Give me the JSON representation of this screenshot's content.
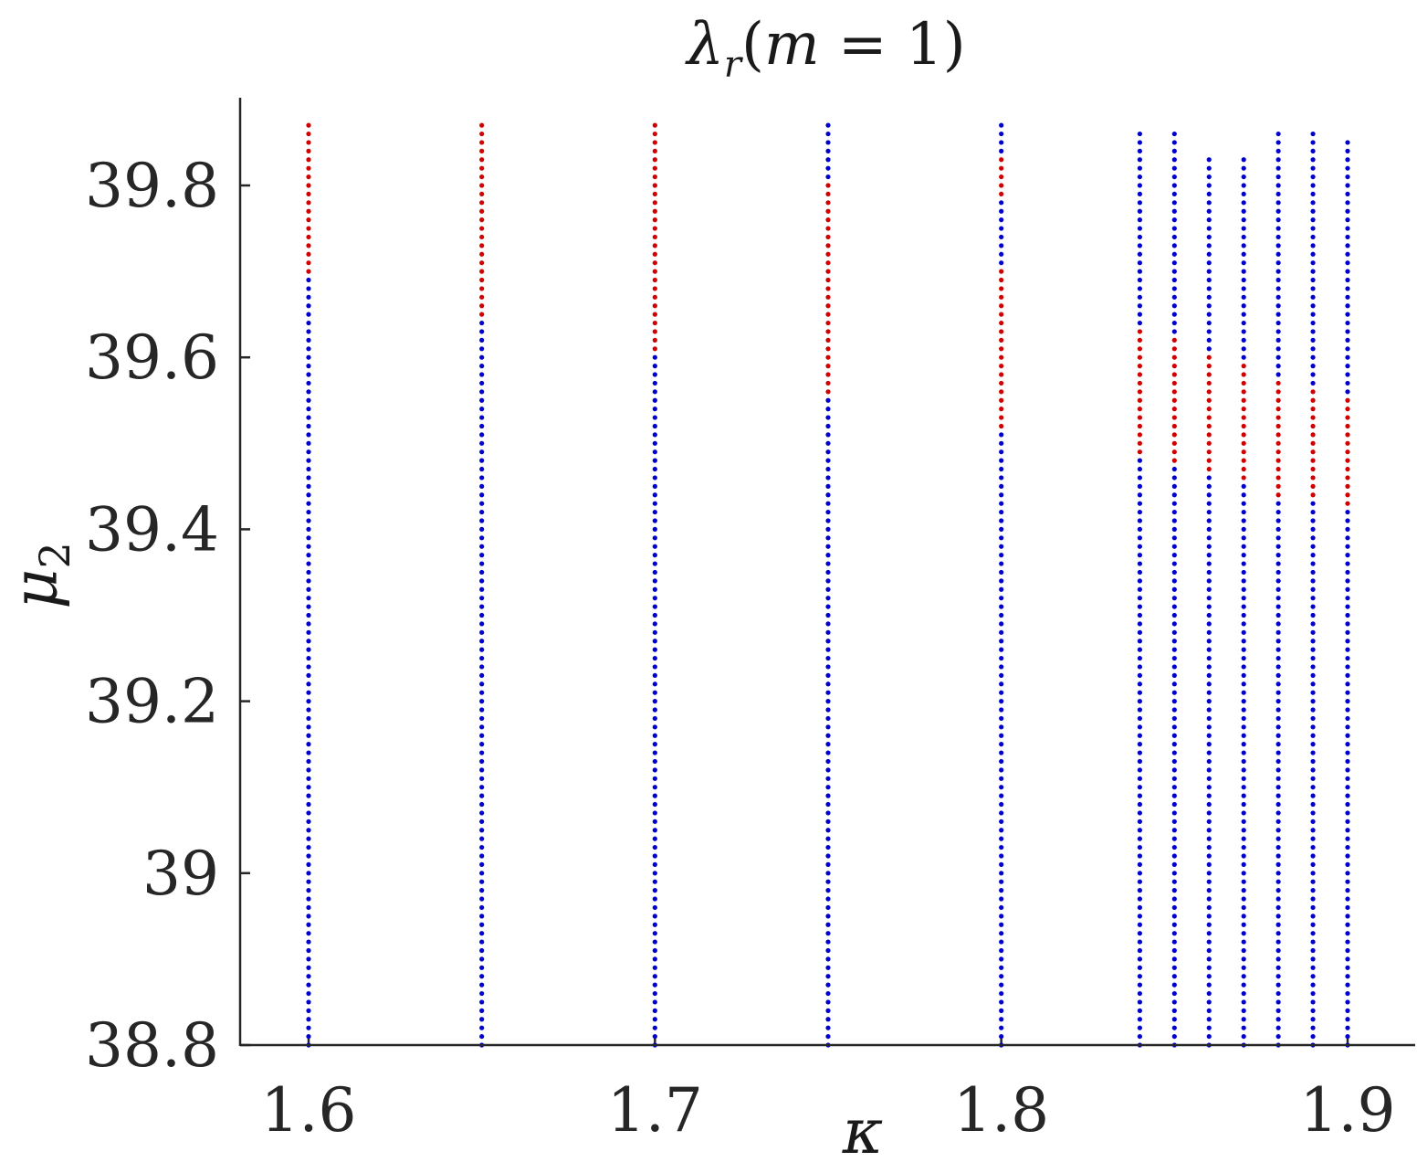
{
  "chart_data": {
    "type": "scatter",
    "title": "λ_r(m = 1)",
    "xlabel": "κ",
    "ylabel": "μ_2",
    "xlim": [
      1.58,
      1.92
    ],
    "ylim": [
      38.8,
      39.9
    ],
    "xticks": [
      {
        "value": 1.6,
        "label": "1.6"
      },
      {
        "value": 1.7,
        "label": "1.7"
      },
      {
        "value": 1.8,
        "label": "1.8"
      },
      {
        "value": 1.9,
        "label": "1.9"
      }
    ],
    "yticks": [
      {
        "value": 38.8,
        "label": "38.8"
      },
      {
        "value": 39.0,
        "label": "39"
      },
      {
        "value": 39.2,
        "label": "39.2"
      },
      {
        "value": 39.4,
        "label": "39.4"
      },
      {
        "value": 39.6,
        "label": "39.6"
      },
      {
        "value": 39.8,
        "label": "39.8"
      }
    ],
    "point_spacing": 0.01,
    "colors": {
      "stable": "#0000cc",
      "unstable": "#d00000"
    },
    "columns": [
      {
        "kappa": 1.6,
        "mu_min": 38.8,
        "mu_max": 39.87,
        "unstable": [
          [
            39.7,
            39.87
          ]
        ]
      },
      {
        "kappa": 1.65,
        "mu_min": 38.8,
        "mu_max": 39.87,
        "unstable": [
          [
            39.65,
            39.87
          ]
        ]
      },
      {
        "kappa": 1.7,
        "mu_min": 38.8,
        "mu_max": 39.87,
        "unstable": [
          [
            39.61,
            39.87
          ]
        ]
      },
      {
        "kappa": 1.75,
        "mu_min": 38.8,
        "mu_max": 39.87,
        "unstable": [
          [
            39.56,
            39.8
          ]
        ]
      },
      {
        "kappa": 1.8,
        "mu_min": 38.8,
        "mu_max": 39.87,
        "unstable": [
          [
            39.79,
            39.83
          ],
          [
            39.52,
            39.7
          ]
        ]
      },
      {
        "kappa": 1.84,
        "mu_min": 38.8,
        "mu_max": 39.86,
        "unstable": [
          [
            39.49,
            39.63
          ]
        ]
      },
      {
        "kappa": 1.85,
        "mu_min": 38.8,
        "mu_max": 39.86,
        "unstable": [
          [
            39.48,
            39.62
          ]
        ]
      },
      {
        "kappa": 1.86,
        "mu_min": 38.8,
        "mu_max": 39.83,
        "unstable": [
          [
            39.47,
            39.6
          ]
        ]
      },
      {
        "kappa": 1.87,
        "mu_min": 38.8,
        "mu_max": 39.83,
        "unstable": [
          [
            39.46,
            39.59
          ]
        ]
      },
      {
        "kappa": 1.88,
        "mu_min": 38.8,
        "mu_max": 39.86,
        "unstable": [
          [
            39.44,
            39.57
          ]
        ]
      },
      {
        "kappa": 1.89,
        "mu_min": 38.8,
        "mu_max": 39.86,
        "unstable": [
          [
            39.44,
            39.56
          ]
        ]
      },
      {
        "kappa": 1.9,
        "mu_min": 38.8,
        "mu_max": 39.85,
        "unstable": [
          [
            39.43,
            39.55
          ]
        ]
      }
    ]
  }
}
